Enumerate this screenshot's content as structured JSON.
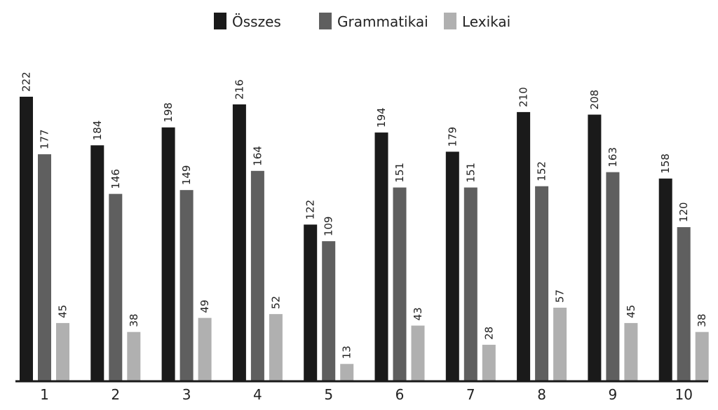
{
  "chart_data": {
    "type": "bar",
    "title": "",
    "xlabel": "",
    "ylabel": "",
    "categories": [
      "1",
      "2",
      "3",
      "4",
      "5",
      "6",
      "7",
      "8",
      "9",
      "10"
    ],
    "series": [
      {
        "name": "Összes",
        "color": "#1a1a1a",
        "values": [
          222,
          184,
          198,
          216,
          122,
          194,
          179,
          210,
          208,
          158
        ]
      },
      {
        "name": "Grammatikai",
        "color": "#5f5f5f",
        "values": [
          177,
          146,
          149,
          164,
          109,
          151,
          151,
          152,
          163,
          120
        ]
      },
      {
        "name": "Lexikai",
        "color": "#b0b0b0",
        "values": [
          45,
          38,
          49,
          52,
          13,
          43,
          28,
          57,
          45,
          38
        ]
      }
    ],
    "ylim": [
      0,
      222
    ],
    "grid": false,
    "legend_position": "top-center",
    "data_labels": true,
    "data_label_orientation": "vertical"
  }
}
